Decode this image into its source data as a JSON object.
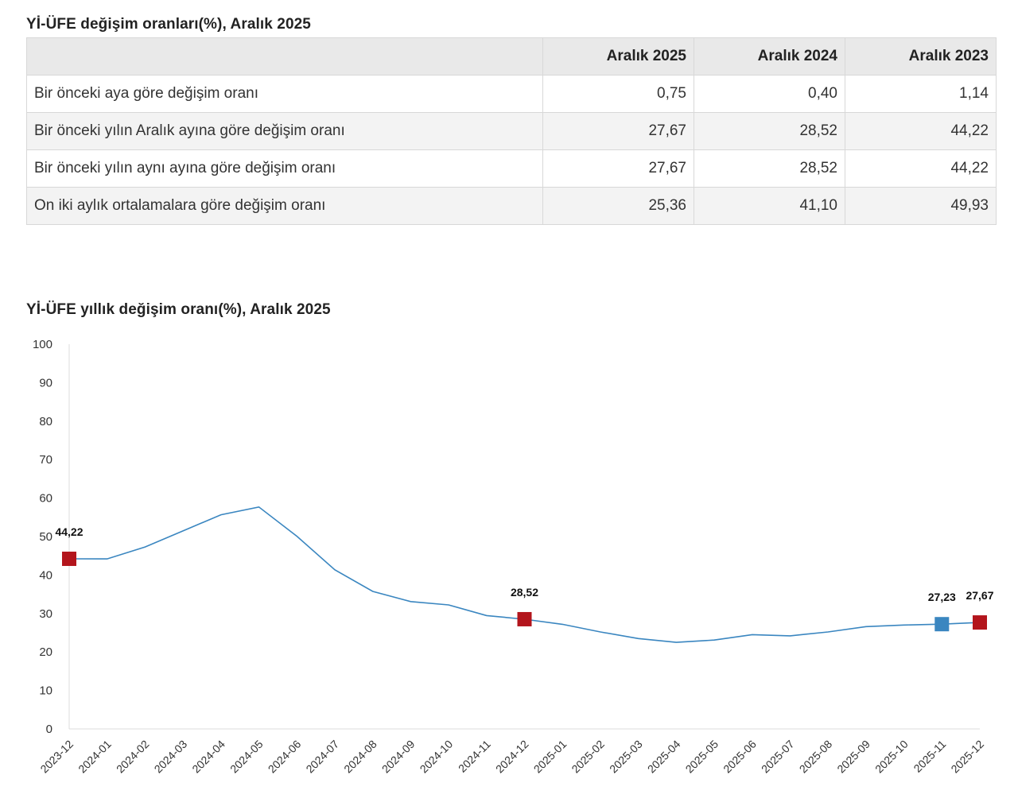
{
  "table": {
    "title": "Yİ-ÜFE değişim oranları(%), Aralık 2025",
    "headers": [
      "",
      "Aralık 2025",
      "Aralık 2024",
      "Aralık 2023"
    ],
    "rows": [
      {
        "label": "Bir önceki aya göre değişim oranı",
        "values": [
          "0,75",
          "0,40",
          "1,14"
        ]
      },
      {
        "label": "Bir önceki yılın Aralık ayına göre değişim oranı",
        "values": [
          "27,67",
          "28,52",
          "44,22"
        ]
      },
      {
        "label": "Bir önceki yılın aynı ayına göre değişim oranı",
        "values": [
          "27,67",
          "28,52",
          "44,22"
        ]
      },
      {
        "label": "On iki aylık ortalamalara göre değişim oranı",
        "values": [
          "25,36",
          "41,10",
          "49,93"
        ]
      }
    ]
  },
  "chart_data": {
    "type": "line",
    "title": "Yİ-ÜFE yıllık değişim oranı(%), Aralık 2025",
    "xlabel": "",
    "ylabel": "",
    "ylim": [
      0,
      100
    ],
    "yticks": [
      0,
      10,
      20,
      30,
      40,
      50,
      60,
      70,
      80,
      90,
      100
    ],
    "grid": false,
    "categories": [
      "2023-12",
      "2024-01",
      "2024-02",
      "2024-03",
      "2024-04",
      "2024-05",
      "2024-06",
      "2024-07",
      "2024-08",
      "2024-09",
      "2024-10",
      "2024-11",
      "2024-12",
      "2025-01",
      "2025-02",
      "2025-03",
      "2025-04",
      "2025-05",
      "2025-06",
      "2025-07",
      "2025-08",
      "2025-09",
      "2025-10",
      "2025-11",
      "2025-12"
    ],
    "series": [
      {
        "name": "Yİ-ÜFE yıllık değişim oranı",
        "color": "#3a86c0",
        "values": [
          44.22,
          44.2,
          47.29,
          51.47,
          55.66,
          57.68,
          50.09,
          41.37,
          35.75,
          33.09,
          32.24,
          29.47,
          28.52,
          27.2,
          25.2,
          23.5,
          22.5,
          23.1,
          24.5,
          24.2,
          25.2,
          26.6,
          27.0,
          27.23,
          27.67
        ]
      }
    ],
    "markers": [
      {
        "index": 0,
        "label": "44,22",
        "color": "#b3151c"
      },
      {
        "index": 12,
        "label": "28,52",
        "color": "#b3151c"
      },
      {
        "index": 23,
        "label": "27,23",
        "color": "#3a86c0"
      },
      {
        "index": 24,
        "label": "27,67",
        "color": "#b3151c"
      }
    ]
  }
}
